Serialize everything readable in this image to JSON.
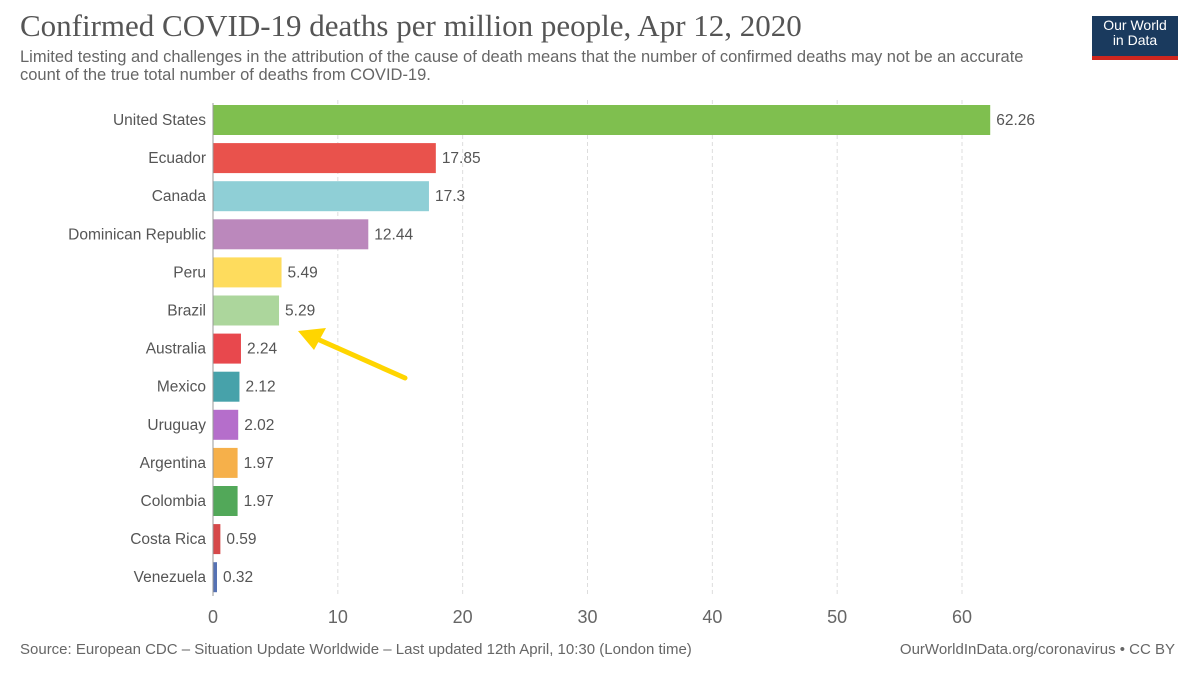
{
  "chart_data": {
    "type": "bar",
    "orientation": "horizontal",
    "title": "Confirmed COVID-19 deaths per million people, Apr 12, 2020",
    "subtitle": "Limited testing and challenges in the attribution of the cause of death means that the number of confirmed deaths may not be an accurate count of the true total number of deaths from COVID-19.",
    "categories": [
      "United States",
      "Ecuador",
      "Canada",
      "Dominican Republic",
      "Peru",
      "Brazil",
      "Australia",
      "Mexico",
      "Uruguay",
      "Argentina",
      "Colombia",
      "Costa Rica",
      "Venezuela"
    ],
    "values": [
      62.26,
      17.85,
      17.3,
      12.44,
      5.49,
      5.29,
      2.24,
      2.12,
      2.02,
      1.97,
      1.97,
      0.59,
      0.32
    ],
    "value_labels": [
      "62.26",
      "17.85",
      "17.3",
      "12.44",
      "5.49",
      "5.29",
      "2.24",
      "2.12",
      "2.02",
      "1.97",
      "1.97",
      "0.59",
      "0.32"
    ],
    "colors": [
      "#7fbf4f",
      "#e9524c",
      "#8fcfd6",
      "#bb88bc",
      "#fedc5d",
      "#acd69c",
      "#e8484d",
      "#47a2aa",
      "#b56ecb",
      "#f6b04a",
      "#52a859",
      "#d6494a",
      "#5672b4"
    ],
    "xticks": [
      0,
      10,
      20,
      30,
      40,
      50,
      60
    ],
    "xlim": [
      0,
      62.26
    ],
    "grid": true,
    "annotation": {
      "type": "arrow",
      "points_to": "Brazil",
      "color": "#ffd500"
    }
  },
  "logo": {
    "line1": "Our World",
    "line2": "in Data"
  },
  "footer": {
    "source": "Source: European CDC – Situation Update Worldwide – Last updated 12th April, 10:30 (London time)",
    "url": "OurWorldInData.org/coronavirus • CC BY"
  }
}
